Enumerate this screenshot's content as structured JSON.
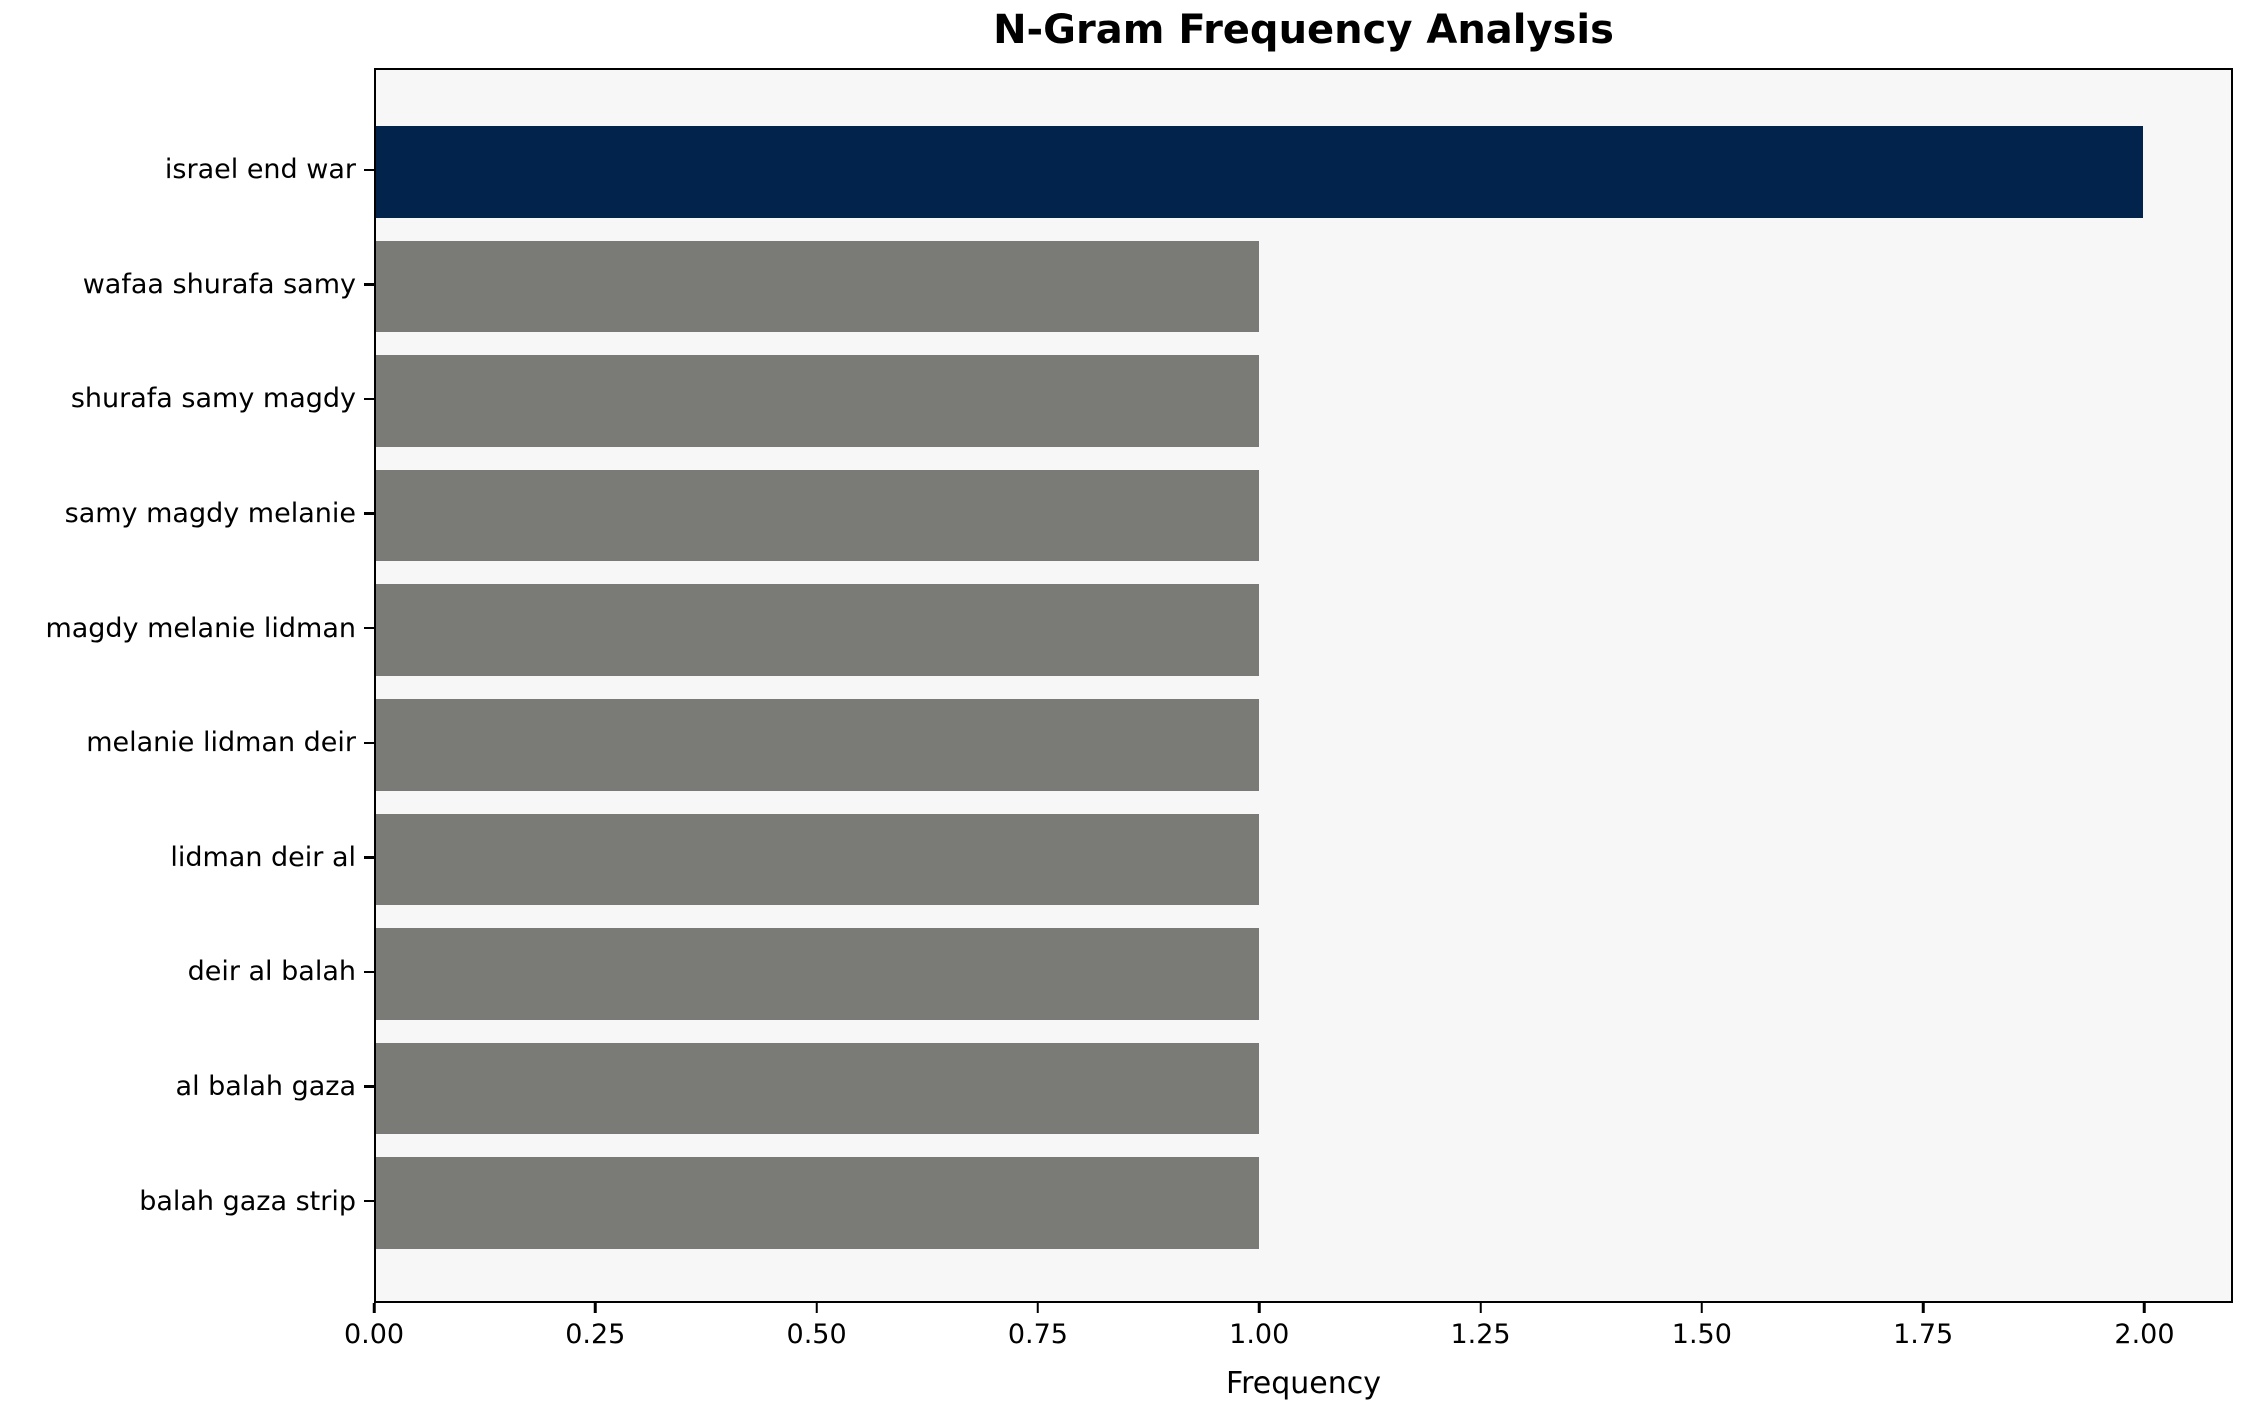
{
  "chart_data": {
    "type": "bar",
    "orientation": "horizontal",
    "title": "N-Gram Frequency Analysis",
    "xlabel": "Frequency",
    "ylabel": "",
    "categories": [
      "israel end war",
      "wafaa shurafa samy",
      "shurafa samy magdy",
      "samy magdy melanie",
      "magdy melanie lidman",
      "melanie lidman deir",
      "lidman deir al",
      "deir al balah",
      "al balah gaza",
      "balah gaza strip"
    ],
    "values": [
      2,
      1,
      1,
      1,
      1,
      1,
      1,
      1,
      1,
      1
    ],
    "bar_colors": [
      "#02234c",
      "#7a7a77",
      "#7a7a77",
      "#7a7a77",
      "#7a7a77",
      "#7a7a77",
      "#7a7a77",
      "#7a7a77",
      "#7a7a77",
      "#7a7a77"
    ],
    "xlim": [
      0,
      2.1
    ],
    "x_tick_values": [
      0,
      0.25,
      0.5,
      0.75,
      1.0,
      1.25,
      1.5,
      1.75,
      2.0
    ],
    "x_tick_labels": [
      "0.00",
      "0.25",
      "0.50",
      "0.75",
      "1.00",
      "1.25",
      "1.50",
      "1.75",
      "2.00"
    ],
    "grid": false,
    "legend": null,
    "colors": {
      "highlight_bar": "#02234c",
      "default_bar": "#7a7a77",
      "plot_background": "#f7f7f7",
      "figure_background": "#ffffff",
      "spine": "#000000",
      "text": "#000000"
    }
  }
}
